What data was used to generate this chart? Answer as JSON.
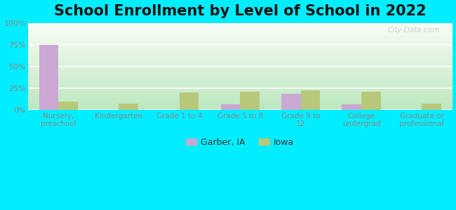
{
  "title": "School Enrollment by Level of School in 2022",
  "categories": [
    "Nursery,\npreschool",
    "Kindergarten",
    "Grade 1 to 4",
    "Grade 5 to 8",
    "Grade 9 to\n12",
    "College\nundergrad",
    "Graduate or\nprofessional"
  ],
  "garber_values": [
    75,
    0,
    0,
    6,
    18,
    6,
    0
  ],
  "iowa_values": [
    9,
    7,
    20,
    21,
    22,
    21,
    7
  ],
  "garber_color": "#c9a8d4",
  "iowa_color": "#b8c87a",
  "background_outer": "#00eeff",
  "background_inner_top_left": "#f0f8ee",
  "background_inner_top_right": "#c8e8d0",
  "background_inner_bottom": "#c0e8c0",
  "ylim": [
    0,
    100
  ],
  "yticks": [
    0,
    25,
    50,
    75,
    100
  ],
  "ytick_labels": [
    "0%",
    "25%",
    "50%",
    "75%",
    "100%"
  ],
  "legend_labels": [
    "Garber, IA",
    "Iowa"
  ],
  "bar_width": 0.32,
  "title_fontsize": 15,
  "watermark": "City-Data.com",
  "grid_color": "#ffffff",
  "tick_color": "#888888",
  "title_color": "#111111"
}
